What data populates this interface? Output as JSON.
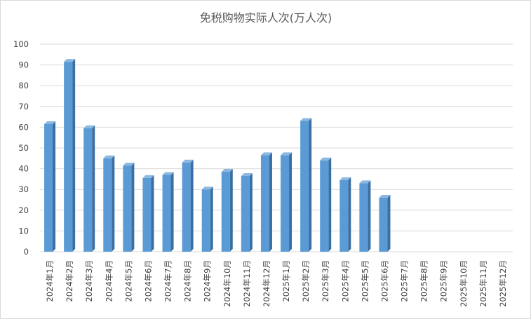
{
  "chart_data": {
    "type": "bar",
    "title": "免税购物实际人次(万人次)",
    "xlabel": "",
    "ylabel": "",
    "ylim": [
      0,
      100
    ],
    "yticks": [
      0,
      10,
      20,
      30,
      40,
      50,
      60,
      70,
      80,
      90,
      100
    ],
    "grid": true,
    "legend": "none",
    "style": "3d-column",
    "bar_color": "#5b9bd5",
    "categories": [
      "2024年1月",
      "2024年2月",
      "2024年3月",
      "2024年4月",
      "2024年5月",
      "2024年6月",
      "2024年7月",
      "2024年8月",
      "2024年9月",
      "2024年10月",
      "2024年11月",
      "2024年12月",
      "2025年1月",
      "2025年2月",
      "2025年3月",
      "2025年4月",
      "2025年5月",
      "2025年6月",
      "2025年7月",
      "2025年8月",
      "2025年9月",
      "2025年10月",
      "2025年11月",
      "2025年12月"
    ],
    "values": [
      61.5,
      91.5,
      59.5,
      45,
      41.5,
      35.5,
      37,
      43,
      30,
      38.5,
      36.5,
      46.5,
      46.5,
      63,
      44,
      34.5,
      33,
      26,
      null,
      null,
      null,
      null,
      null,
      null
    ]
  }
}
